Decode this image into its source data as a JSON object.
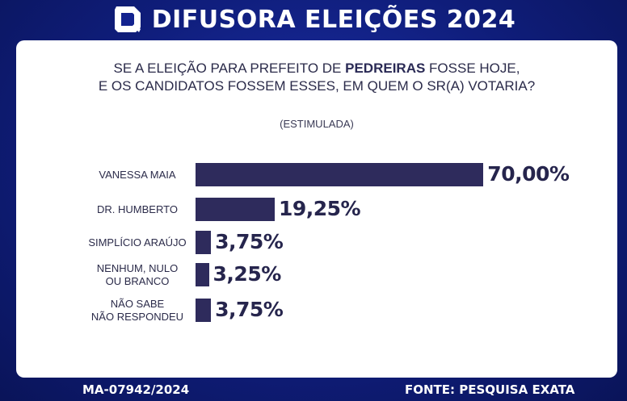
{
  "header": {
    "title": "DIFUSORA ELEIÇÕES 2024",
    "logo_icon": "difusora-logo-icon"
  },
  "question": {
    "line1_pre": "SE A ELEIÇÃO PARA PREFEITO DE ",
    "city": "PEDREIRAS",
    "line1_post": " FOSSE HOJE,",
    "line2": "E OS CANDIDATOS FOSSEM ESSES, EM QUEM O SR(A) VOTARIA?",
    "subtitle": "(ESTIMULADA)"
  },
  "chart_data": {
    "type": "bar",
    "orientation": "horizontal",
    "categories": [
      "VANESSA MAIA",
      "DR. HUMBERTO",
      "SIMPLÍCIO ARAÚJO",
      "NENHUM, NULO OU BRANCO",
      "NÃO SABE NÃO RESPONDEU"
    ],
    "label_lines": [
      [
        "VANESSA MAIA"
      ],
      [
        "DR. HUMBERTO"
      ],
      [
        "SIMPLÍCIO ARAÚJO"
      ],
      [
        "NENHUM, NULO",
        "OU BRANCO"
      ],
      [
        "NÃO SABE",
        "NÃO RESPONDEU"
      ]
    ],
    "values": [
      70.0,
      19.25,
      3.75,
      3.25,
      3.75
    ],
    "value_labels": [
      "70,00%",
      "19,25%",
      "3,75%",
      "3,25%",
      "3,75%"
    ],
    "bar_color": "#2e2b5c",
    "xlim": [
      0,
      100
    ],
    "grid": false
  },
  "footer": {
    "registration": "MA-07942/2024",
    "source": "FONTE:  PESQUISA EXATA"
  },
  "colors": {
    "background": "#13238f",
    "card": "#ffffff",
    "text": "#2b2b4a"
  }
}
